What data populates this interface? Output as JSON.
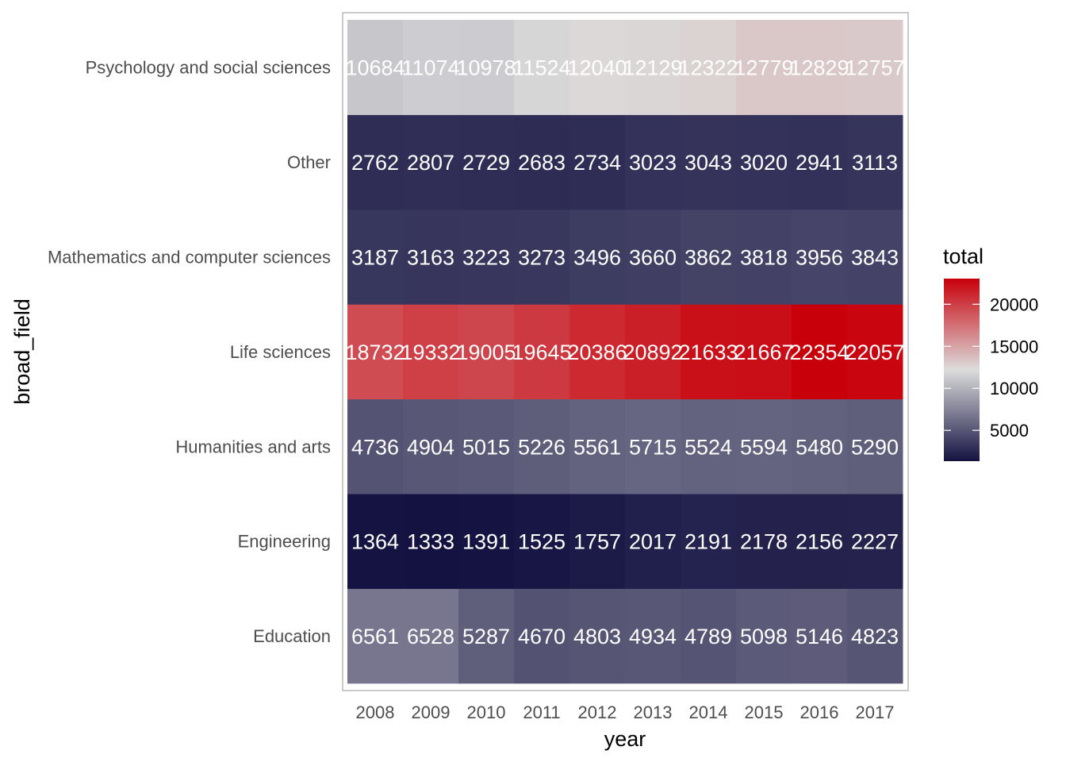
{
  "chart_data": {
    "type": "heatmap",
    "xlabel": "year",
    "ylabel": "broad_field",
    "x": [
      "2008",
      "2009",
      "2010",
      "2011",
      "2012",
      "2013",
      "2014",
      "2015",
      "2016",
      "2017"
    ],
    "y": [
      "Education",
      "Engineering",
      "Humanities and arts",
      "Life sciences",
      "Mathematics and computer sciences",
      "Other",
      "Psychology and social sciences"
    ],
    "values": [
      [
        6561,
        6528,
        5287,
        4670,
        4803,
        4934,
        4789,
        5098,
        5146,
        4823
      ],
      [
        1364,
        1333,
        1391,
        1525,
        1757,
        2017,
        2191,
        2178,
        2156,
        2227
      ],
      [
        4736,
        4904,
        5015,
        5226,
        5561,
        5715,
        5524,
        5594,
        5480,
        5290
      ],
      [
        18732,
        19332,
        19005,
        19645,
        20386,
        20892,
        21633,
        21667,
        22354,
        22057
      ],
      [
        3187,
        3163,
        3223,
        3273,
        3496,
        3660,
        3862,
        3818,
        3956,
        3843
      ],
      [
        2762,
        2807,
        2729,
        2683,
        2734,
        3023,
        3043,
        3020,
        2941,
        3113
      ],
      [
        10684,
        11074,
        10978,
        11524,
        12040,
        12129,
        12322,
        12779,
        12829,
        12757
      ]
    ],
    "legend": {
      "title": "total",
      "ticks": [
        5000,
        10000,
        15000,
        20000
      ],
      "range": [
        1333,
        22354
      ],
      "colors": {
        "low": "#141241",
        "mid": "#dcdcdc",
        "high": "#c8000a"
      },
      "placement": "right"
    }
  }
}
